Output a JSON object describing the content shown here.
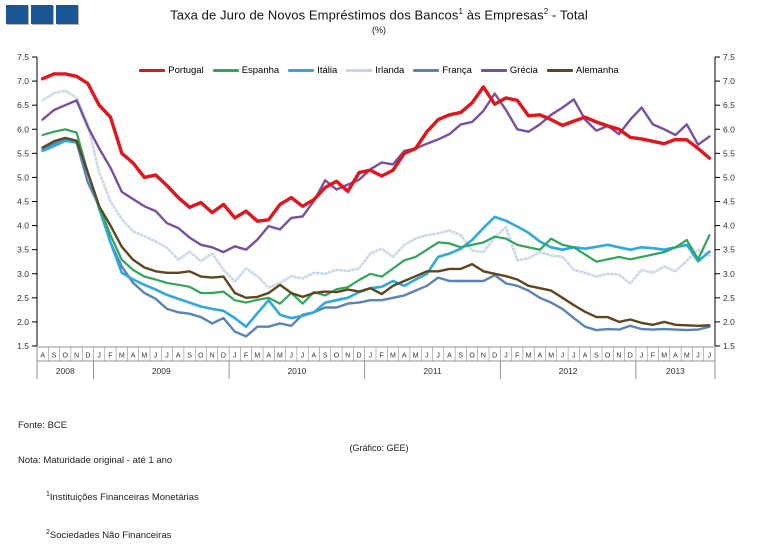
{
  "logo": {
    "color": "#1a5693"
  },
  "header": {
    "title_main": "Taxa de Juro de Novos Empréstimos dos Bancos",
    "title_sup1": "1",
    "title_mid": " às Empresas",
    "title_sup2": "2",
    "title_end": " - Total",
    "subtitle": "(%)"
  },
  "footer": {
    "fonte": "Fonte: BCE",
    "nota": "Nota: Maturidade original - até 1 ano",
    "note1_sup": "1",
    "note1": "Instituições Financeiras Monetárias",
    "note2_sup": "2",
    "note2": "Sociedades Não Financeiras",
    "grafico": "(Gráfico: GEE)"
  },
  "chart_data": {
    "type": "line",
    "title": "Taxa de Juro de Novos Empréstimos dos Bancos às Empresas - Total",
    "subtitle": "(%)",
    "ylabel": "%",
    "ylim": [
      1.5,
      7.5
    ],
    "ytick_step": 0.5,
    "grid": false,
    "legend_position": "top-center",
    "x_months": [
      "A",
      "S",
      "O",
      "N",
      "D",
      "J",
      "F",
      "M",
      "A",
      "M",
      "J",
      "J",
      "A",
      "S",
      "O",
      "N",
      "D",
      "J",
      "F",
      "M",
      "A",
      "M",
      "J",
      "J",
      "A",
      "S",
      "O",
      "N",
      "D",
      "J",
      "F",
      "M",
      "A",
      "M",
      "J",
      "J",
      "A",
      "S",
      "O",
      "N",
      "D",
      "J",
      "F",
      "M",
      "A",
      "M",
      "J",
      "J",
      "A",
      "S",
      "O",
      "N",
      "D",
      "J",
      "F",
      "M",
      "A",
      "M",
      "J",
      "J"
    ],
    "x_years": [
      {
        "label": "2008",
        "months": 5
      },
      {
        "label": "2009",
        "months": 12
      },
      {
        "label": "2010",
        "months": 12
      },
      {
        "label": "2011",
        "months": 12
      },
      {
        "label": "2012",
        "months": 12
      },
      {
        "label": "2013",
        "months": 7
      }
    ],
    "draw_order": [
      3,
      4,
      2,
      1,
      6,
      5,
      0
    ],
    "series": [
      {
        "name": "Portugal",
        "color": "#e2141c",
        "width": 3.4,
        "values": [
          7.05,
          7.15,
          7.15,
          7.1,
          6.95,
          6.5,
          6.25,
          5.5,
          5.3,
          5.0,
          5.05,
          4.83,
          4.58,
          4.38,
          4.48,
          4.27,
          4.44,
          4.16,
          4.3,
          4.09,
          4.12,
          4.44,
          4.58,
          4.4,
          4.54,
          4.79,
          4.92,
          4.71,
          5.1,
          5.15,
          5.03,
          5.15,
          5.5,
          5.6,
          5.95,
          6.2,
          6.3,
          6.35,
          6.55,
          6.88,
          6.52,
          6.65,
          6.6,
          6.28,
          6.3,
          6.2,
          6.08,
          6.17,
          6.25,
          6.15,
          6.07,
          6.0,
          5.83,
          5.8,
          5.75,
          5.7,
          5.79,
          5.78,
          5.6,
          5.4
        ]
      },
      {
        "name": "Espanha",
        "color": "#2fa65a",
        "width": 2.2,
        "values": [
          5.88,
          5.95,
          6.0,
          5.93,
          5.1,
          4.4,
          3.8,
          3.29,
          3.08,
          2.94,
          2.88,
          2.81,
          2.77,
          2.73,
          2.6,
          2.6,
          2.63,
          2.45,
          2.4,
          2.46,
          2.5,
          2.38,
          2.6,
          2.38,
          2.62,
          2.55,
          2.68,
          2.72,
          2.87,
          3.0,
          2.94,
          3.11,
          3.28,
          3.35,
          3.5,
          3.65,
          3.63,
          3.55,
          3.6,
          3.65,
          3.77,
          3.73,
          3.6,
          3.55,
          3.5,
          3.73,
          3.6,
          3.55,
          3.4,
          3.25,
          3.3,
          3.35,
          3.3,
          3.35,
          3.4,
          3.45,
          3.55,
          3.7,
          3.3,
          3.8
        ]
      },
      {
        "name": "Itália",
        "color": "#2ea9de",
        "width": 2.6,
        "values": [
          5.55,
          5.65,
          5.76,
          5.73,
          5.1,
          4.35,
          3.65,
          3.02,
          2.88,
          2.77,
          2.67,
          2.56,
          2.48,
          2.4,
          2.32,
          2.27,
          2.23,
          2.08,
          1.9,
          2.18,
          2.45,
          2.15,
          2.08,
          2.13,
          2.2,
          2.4,
          2.45,
          2.5,
          2.62,
          2.7,
          2.73,
          2.85,
          2.75,
          2.88,
          3.0,
          3.35,
          3.42,
          3.52,
          3.7,
          3.95,
          4.18,
          4.1,
          3.98,
          3.85,
          3.67,
          3.55,
          3.5,
          3.55,
          3.52,
          3.56,
          3.6,
          3.55,
          3.5,
          3.55,
          3.53,
          3.5,
          3.55,
          3.6,
          3.26,
          3.46
        ]
      },
      {
        "name": "Irlanda",
        "color": "#c7d5e9",
        "width": 2.4,
        "dotted": true,
        "values": [
          6.6,
          6.75,
          6.8,
          6.65,
          6.1,
          5.1,
          4.5,
          4.13,
          3.88,
          3.78,
          3.67,
          3.54,
          3.29,
          3.46,
          3.26,
          3.42,
          3.08,
          2.84,
          3.11,
          2.95,
          2.71,
          2.81,
          2.95,
          2.9,
          3.02,
          3.0,
          3.08,
          3.06,
          3.11,
          3.42,
          3.52,
          3.35,
          3.6,
          3.73,
          3.8,
          3.84,
          3.9,
          3.8,
          3.48,
          3.45,
          3.75,
          3.97,
          3.28,
          3.32,
          3.45,
          3.38,
          3.35,
          3.08,
          3.02,
          2.94,
          3.0,
          2.98,
          2.8,
          3.08,
          3.02,
          3.15,
          3.05,
          3.27,
          3.5,
          3.38
        ]
      },
      {
        "name": "França",
        "color": "#5b84b6",
        "width": 2.4,
        "values": [
          5.58,
          5.7,
          5.78,
          5.72,
          4.9,
          4.4,
          3.65,
          3.15,
          2.81,
          2.6,
          2.48,
          2.27,
          2.2,
          2.17,
          2.1,
          1.97,
          2.08,
          1.8,
          1.7,
          1.9,
          1.9,
          1.97,
          1.92,
          2.15,
          2.2,
          2.3,
          2.3,
          2.38,
          2.4,
          2.45,
          2.45,
          2.5,
          2.55,
          2.65,
          2.75,
          2.92,
          2.85,
          2.85,
          2.85,
          2.85,
          2.97,
          2.8,
          2.75,
          2.65,
          2.5,
          2.4,
          2.27,
          2.08,
          1.9,
          1.83,
          1.85,
          1.84,
          1.92,
          1.85,
          1.84,
          1.85,
          1.84,
          1.83,
          1.84,
          1.9
        ]
      },
      {
        "name": "Grécia",
        "color": "#7750a0",
        "width": 2.4,
        "values": [
          6.2,
          6.4,
          6.5,
          6.6,
          6.05,
          5.6,
          5.2,
          4.7,
          4.55,
          4.4,
          4.3,
          4.05,
          3.95,
          3.75,
          3.6,
          3.55,
          3.45,
          3.57,
          3.5,
          3.71,
          3.99,
          3.92,
          4.16,
          4.19,
          4.51,
          4.94,
          4.75,
          4.85,
          4.95,
          5.17,
          5.31,
          5.27,
          5.55,
          5.6,
          5.7,
          5.79,
          5.9,
          6.1,
          6.15,
          6.38,
          6.74,
          6.4,
          6.0,
          5.95,
          6.1,
          6.3,
          6.45,
          6.62,
          6.2,
          5.97,
          6.07,
          5.9,
          6.2,
          6.45,
          6.1,
          6.0,
          5.88,
          6.1,
          5.68,
          5.85
        ]
      },
      {
        "name": "Alemanha",
        "color": "#5e461f",
        "width": 2.4,
        "values": [
          5.62,
          5.75,
          5.82,
          5.76,
          5.1,
          4.4,
          4.0,
          3.56,
          3.29,
          3.13,
          3.05,
          3.02,
          3.02,
          3.05,
          2.94,
          2.92,
          2.94,
          2.6,
          2.5,
          2.52,
          2.6,
          2.77,
          2.6,
          2.52,
          2.6,
          2.63,
          2.62,
          2.67,
          2.63,
          2.7,
          2.58,
          2.75,
          2.85,
          2.95,
          3.05,
          3.05,
          3.1,
          3.1,
          3.2,
          3.05,
          3.0,
          2.95,
          2.88,
          2.75,
          2.7,
          2.65,
          2.5,
          2.35,
          2.21,
          2.1,
          2.1,
          2.0,
          2.05,
          1.98,
          1.94,
          2.0,
          1.94,
          1.93,
          1.92,
          1.93
        ]
      }
    ]
  }
}
